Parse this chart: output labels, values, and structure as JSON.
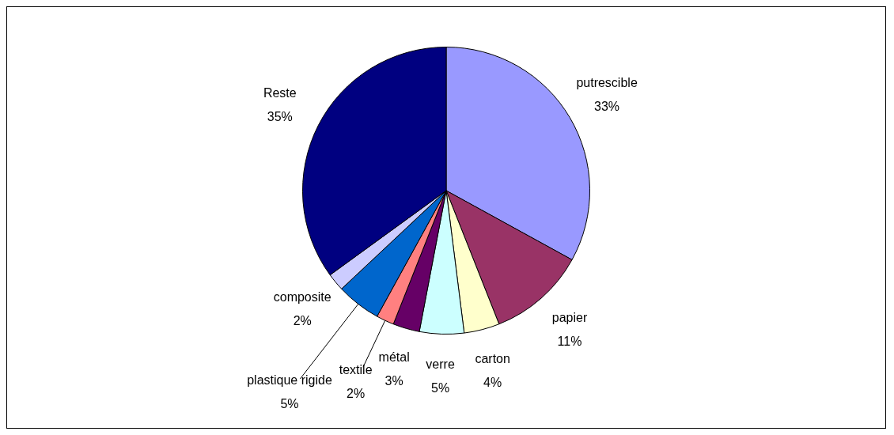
{
  "chart_data": {
    "type": "pie",
    "categories": [
      "putrescible",
      "papier",
      "carton",
      "verre",
      "métal",
      "textile",
      "plastique rigide",
      "composite",
      "Reste"
    ],
    "values": [
      33,
      11,
      4,
      5,
      3,
      2,
      5,
      2,
      35
    ],
    "colors": [
      "#9999ff",
      "#993366",
      "#ffffcc",
      "#ccffff",
      "#660066",
      "#ff8080",
      "#0066cc",
      "#ccccff",
      "#000080"
    ],
    "value_labels": [
      "33%",
      "11%",
      "4%",
      "5%",
      "3%",
      "2%",
      "5%",
      "2%",
      "35%"
    ],
    "legend": false
  }
}
